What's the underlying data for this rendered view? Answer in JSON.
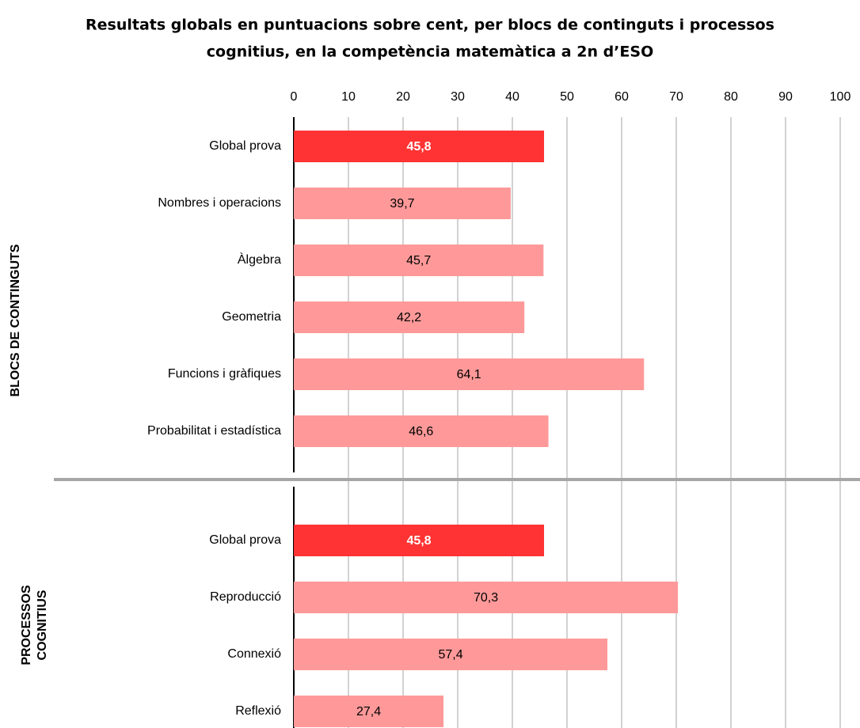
{
  "chart_data": {
    "type": "bar",
    "orientation": "horizontal",
    "title": [
      "Resultats globals en puntuacions sobre cent, per blocs de continguts i processos",
      "cognitius, en la competència matemàtica a 2n d’ESO"
    ],
    "xlim": [
      0,
      100
    ],
    "xticks": [
      0,
      10,
      20,
      30,
      40,
      50,
      60,
      70,
      80,
      90,
      100
    ],
    "grid": true,
    "highlight_color": "#ff3333",
    "groups": [
      {
        "label": [
          "BLOCS DE CONTINGUTS"
        ],
        "categories": [
          "Global prova",
          "Nombres i operacions",
          "Àlgebra",
          "Geometria",
          "Funcions i gràfiques",
          "Probabilitat i estadística"
        ],
        "values": [
          45.8,
          39.7,
          45.7,
          42.2,
          64.1,
          46.6
        ],
        "value_labels": [
          "45,8",
          "39,7",
          "45,7",
          "42,2",
          "64,1",
          "46,6"
        ],
        "colors": [
          "#ff3333",
          "#ff9999",
          "#ff9999",
          "#ff9999",
          "#ff9999",
          "#ff9999"
        ]
      },
      {
        "label": [
          "PROCESSOS",
          "COGNITIUS"
        ],
        "categories": [
          "Global prova",
          "Reproducció",
          "Connexió",
          "Reflexió"
        ],
        "values": [
          45.8,
          70.3,
          57.4,
          27.4
        ],
        "value_labels": [
          "45,8",
          "70,3",
          "57,4",
          "27,4"
        ],
        "colors": [
          "#ff3333",
          "#ff9999",
          "#ff9999",
          "#ff9999"
        ]
      }
    ]
  }
}
